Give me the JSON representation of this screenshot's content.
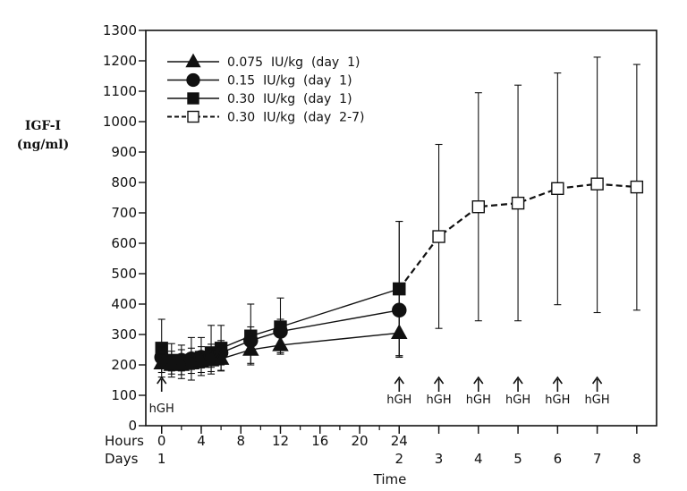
{
  "chart_data": {
    "type": "line",
    "ylabel_lines": [
      "IGF-I",
      "(ng/ml)"
    ],
    "xlabel": "Time",
    "ylim": [
      0,
      1300
    ],
    "y_ticks": [
      0,
      100,
      200,
      300,
      400,
      500,
      600,
      700,
      800,
      900,
      1000,
      1100,
      1200,
      1300
    ],
    "x_axis_rows": [
      {
        "label": "Hours",
        "ticks": [
          {
            "x": 0,
            "text": "0"
          },
          {
            "x": 4,
            "text": "4"
          },
          {
            "x": 8,
            "text": "8"
          },
          {
            "x": 12,
            "text": "12"
          },
          {
            "x": 16,
            "text": "16"
          },
          {
            "x": 20,
            "text": "20"
          },
          {
            "x": 24,
            "text": "24"
          }
        ]
      },
      {
        "label": "Days",
        "ticks": [
          {
            "x": 0,
            "text": "1"
          },
          {
            "x": 24,
            "text": "2"
          },
          {
            "x": 28,
            "text": "3"
          },
          {
            "x": 32,
            "text": "4"
          },
          {
            "x": 36,
            "text": "5"
          },
          {
            "x": 40,
            "text": "6"
          },
          {
            "x": 44,
            "text": "7"
          },
          {
            "x": 48,
            "text": "8"
          }
        ]
      }
    ],
    "xlim": [
      -1.6,
      50
    ],
    "grid": false,
    "legend_position": "top-left",
    "series": [
      {
        "name": "0.075  IU/kg  (day  1)",
        "marker": "triangle",
        "filled": true,
        "line": "solid",
        "points": [
          {
            "x": 0,
            "y": 205,
            "err_low": 175,
            "err_high": 235
          },
          {
            "x": 1,
            "y": 200,
            "err_low": 170,
            "err_high": 230
          },
          {
            "x": 2,
            "y": 200,
            "err_low": 168,
            "err_high": 232
          },
          {
            "x": 3,
            "y": 205,
            "err_low": 172,
            "err_high": 238
          },
          {
            "x": 4,
            "y": 210,
            "err_low": 175,
            "err_high": 245
          },
          {
            "x": 5,
            "y": 215,
            "err_low": 178,
            "err_high": 252
          },
          {
            "x": 6,
            "y": 220,
            "err_low": 182,
            "err_high": 258
          },
          {
            "x": 9,
            "y": 250,
            "err_low": 205,
            "err_high": 295
          },
          {
            "x": 12,
            "y": 265,
            "err_low": 235,
            "err_high": 295
          },
          {
            "x": 24,
            "y": 305,
            "err_low": 225,
            "err_high": 385
          }
        ]
      },
      {
        "name": "0.15  IU/kg  (day  1)",
        "marker": "circle",
        "filled": true,
        "line": "solid",
        "points": [
          {
            "x": 0,
            "y": 225,
            "err_low": 190,
            "err_high": 260
          },
          {
            "x": 1,
            "y": 210,
            "err_low": 180,
            "err_high": 245
          },
          {
            "x": 2,
            "y": 215,
            "err_low": 180,
            "err_high": 250
          },
          {
            "x": 3,
            "y": 220,
            "err_low": 185,
            "err_high": 255
          },
          {
            "x": 4,
            "y": 225,
            "err_low": 190,
            "err_high": 260
          },
          {
            "x": 5,
            "y": 230,
            "err_low": 192,
            "err_high": 268
          },
          {
            "x": 6,
            "y": 240,
            "err_low": 200,
            "err_high": 280
          },
          {
            "x": 9,
            "y": 280,
            "err_low": 235,
            "err_high": 325
          },
          {
            "x": 12,
            "y": 310,
            "err_low": 270,
            "err_high": 350
          },
          {
            "x": 24,
            "y": 380,
            "err_low": 300,
            "err_high": 460
          }
        ]
      },
      {
        "name": "0.30  IU/kg  (day  1)",
        "marker": "square",
        "filled": true,
        "line": "solid",
        "points": [
          {
            "x": 0,
            "y": 255,
            "err_low": 160,
            "err_high": 350
          },
          {
            "x": 1,
            "y": 215,
            "err_low": 160,
            "err_high": 270
          },
          {
            "x": 2,
            "y": 210,
            "err_low": 155,
            "err_high": 265
          },
          {
            "x": 3,
            "y": 215,
            "err_low": 150,
            "err_high": 290
          },
          {
            "x": 4,
            "y": 225,
            "err_low": 165,
            "err_high": 290
          },
          {
            "x": 5,
            "y": 240,
            "err_low": 170,
            "err_high": 330
          },
          {
            "x": 6,
            "y": 255,
            "err_low": 180,
            "err_high": 330
          },
          {
            "x": 9,
            "y": 295,
            "err_low": 200,
            "err_high": 400
          },
          {
            "x": 12,
            "y": 325,
            "err_low": 240,
            "err_high": 420
          },
          {
            "x": 24,
            "y": 450,
            "err_low": 230,
            "err_high": 672
          }
        ]
      },
      {
        "name": "0.30  IU/kg  (day  2-7)",
        "marker": "square",
        "filled": false,
        "line": "dashed",
        "points": [
          {
            "x": 24,
            "y": 450,
            "err_low": 230,
            "err_high": 672
          },
          {
            "x": 28,
            "y": 622,
            "err_low": 320,
            "err_high": 925
          },
          {
            "x": 32,
            "y": 720,
            "err_low": 345,
            "err_high": 1095
          },
          {
            "x": 36,
            "y": 732,
            "err_low": 345,
            "err_high": 1120
          },
          {
            "x": 40,
            "y": 780,
            "err_low": 398,
            "err_high": 1160
          },
          {
            "x": 44,
            "y": 795,
            "err_low": 372,
            "err_high": 1212
          },
          {
            "x": 48,
            "y": 785,
            "err_low": 380,
            "err_high": 1188
          }
        ]
      }
    ],
    "annotations": [
      {
        "text": "hGH",
        "x": 0,
        "label_below": true
      },
      {
        "text": "hGH",
        "x": 24,
        "label_below": true
      },
      {
        "text": "hGH",
        "x": 28,
        "label_below": true
      },
      {
        "text": "hGH",
        "x": 32,
        "label_below": true
      },
      {
        "text": "hGH",
        "x": 36,
        "label_below": true
      },
      {
        "text": "hGH",
        "x": 40,
        "label_below": true
      },
      {
        "text": "hGH",
        "x": 44,
        "label_below": true
      }
    ]
  }
}
